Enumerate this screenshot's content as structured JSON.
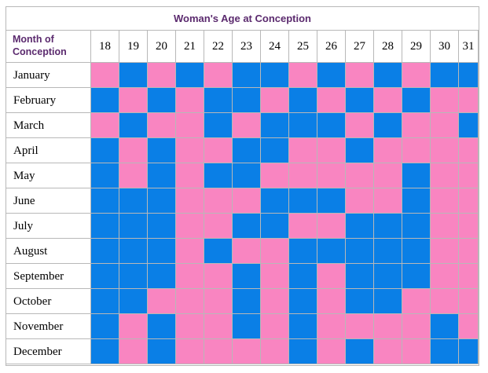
{
  "title": "Woman's Age at Conception",
  "corner_label": "Month of Conception",
  "colors": {
    "blue": "#0a7fe6",
    "pink": "#f985c1",
    "title_text": "#5b2a6e"
  },
  "ages": [
    "18",
    "19",
    "20",
    "21",
    "22",
    "23",
    "24",
    "25",
    "26",
    "27",
    "28",
    "29",
    "30",
    "31"
  ],
  "months": [
    "January",
    "February",
    "March",
    "April",
    "May",
    "June",
    "July",
    "August",
    "September",
    "October",
    "November",
    "December"
  ],
  "grid": [
    "PBPBPBBPBPBPBB",
    "BPBPBBPBPBPBPP",
    "PBPPBPBBBPBPPB",
    "BPBPPBBPPBPPPP",
    "BPBPBBPPPPPBPP",
    "BBBPPPBBBPPBPP",
    "BBBPPBBPPBBBPP",
    "BBBPBPPBBBBBPP",
    "BBBPPBPBPBBBPP",
    "BBPPPBPBPBBPPP",
    "BPBPPBPBPPPPBP",
    "BPBPPPPBPBPPBB"
  ]
}
